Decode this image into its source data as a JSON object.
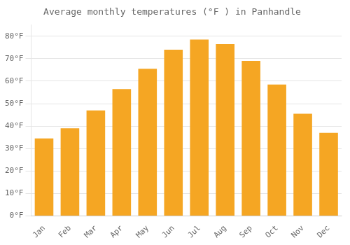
{
  "chart_data": {
    "type": "bar",
    "title": "Average monthly temperatures (°F ) in Panhandle",
    "categories": [
      "Jan",
      "Feb",
      "Mar",
      "Apr",
      "May",
      "Jun",
      "Jul",
      "Aug",
      "Sep",
      "Oct",
      "Nov",
      "Dec"
    ],
    "values": [
      34.5,
      39.0,
      47.0,
      56.5,
      65.5,
      74.0,
      78.5,
      76.5,
      69.0,
      58.5,
      45.5,
      37.0
    ],
    "color": "#F5A623",
    "ylim": [
      0,
      85
    ],
    "yticks": [
      {
        "value": 0,
        "label": "0°F"
      },
      {
        "value": 10,
        "label": "10°F"
      },
      {
        "value": 20,
        "label": "20°F"
      },
      {
        "value": 30,
        "label": "30°F"
      },
      {
        "value": 40,
        "label": "40°F"
      },
      {
        "value": 50,
        "label": "50°F"
      },
      {
        "value": 60,
        "label": "60°F"
      },
      {
        "value": 70,
        "label": "70°F"
      },
      {
        "value": 80,
        "label": "80°F"
      }
    ],
    "grid": true
  }
}
